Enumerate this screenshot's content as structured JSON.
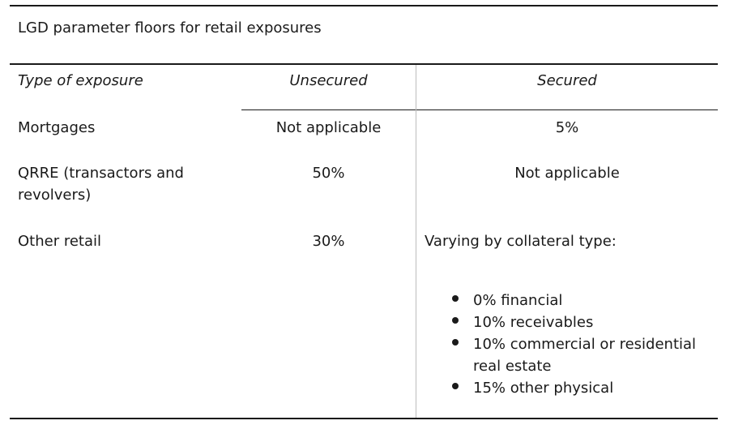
{
  "caption": "LGD parameter floors for retail exposures",
  "columns": {
    "type": "Type of exposure",
    "unsecured": "Unsecured",
    "secured": "Secured"
  },
  "rows": [
    {
      "type": "Mortgages",
      "unsecured": "Not applicable",
      "secured": "5%"
    },
    {
      "type_line1": "QRRE (transactors and",
      "type_line2": "revolvers)",
      "unsecured": "50%",
      "secured": "Not applicable"
    },
    {
      "type": "Other retail",
      "unsecured": "30%",
      "secured": "Varying by collateral type:"
    }
  ],
  "collateral_items": [
    {
      "line1": "0% financial"
    },
    {
      "line1": "10% receivables"
    },
    {
      "line1": "10% commercial or residential",
      "line2": "real estate"
    },
    {
      "line1": "15% other physical"
    }
  ]
}
